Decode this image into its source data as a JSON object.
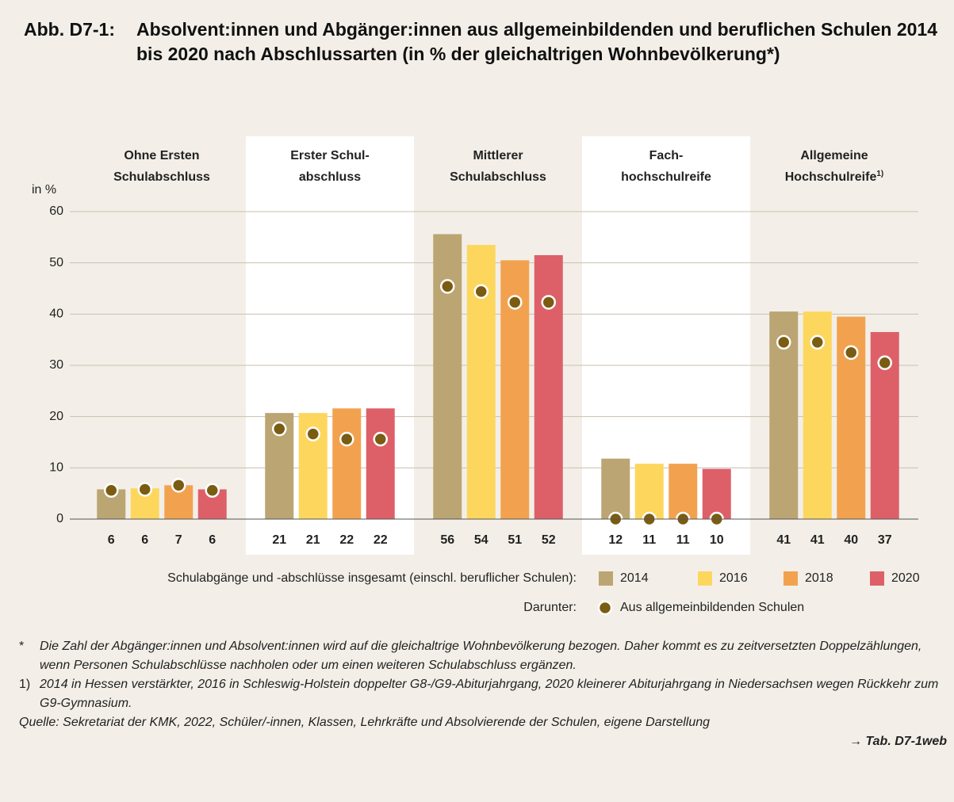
{
  "chart_data": {
    "type": "bar",
    "figure_label": "Abb. D7-1:",
    "title": "Absolvent:innen und Abgänger:innen aus allgemeinbildenden und beruflichen Schulen 2014 bis 2020 nach Abschlussarten (in % der gleichaltrigen Wohnbevölkerung*)",
    "y_label": "in %",
    "categories": [
      {
        "lines": [
          "Ohne Ersten",
          "Schulabschluss"
        ]
      },
      {
        "lines": [
          "Erster Schul-",
          "abschluss"
        ]
      },
      {
        "lines": [
          "Mittlerer",
          "Schulabschluss"
        ]
      },
      {
        "lines": [
          "Fach-",
          "hochschulreife"
        ]
      },
      {
        "lines": [
          "Allgemeine",
          "Hochschulreife"
        ],
        "note": "1)"
      }
    ],
    "series": [
      {
        "name": "2014",
        "color": "#bba573",
        "values": [
          5.8,
          20.7,
          55.6,
          11.8,
          40.5
        ],
        "value_labels": [
          "6",
          "21",
          "56",
          "12",
          "41"
        ],
        "dots": [
          5.6,
          17.6,
          45.4,
          0,
          34.5
        ]
      },
      {
        "name": "2016",
        "color": "#fdd75d",
        "values": [
          6,
          20.7,
          53.5,
          10.8,
          40.5
        ],
        "value_labels": [
          "6",
          "21",
          "54",
          "11",
          "41"
        ],
        "dots": [
          5.8,
          16.6,
          44.4,
          0,
          34.5
        ]
      },
      {
        "name": "2018",
        "color": "#f2a24f",
        "values": [
          6.6,
          21.6,
          50.5,
          10.8,
          39.5
        ],
        "value_labels": [
          "7",
          "22",
          "51",
          "11",
          "40"
        ],
        "dots": [
          6.6,
          15.6,
          42.3,
          0,
          32.5
        ]
      },
      {
        "name": "2020",
        "color": "#dd6069",
        "values": [
          5.8,
          21.6,
          51.5,
          9.8,
          36.5
        ],
        "value_labels": [
          "6",
          "22",
          "52",
          "10",
          "37"
        ],
        "dots": [
          5.6,
          15.6,
          42.3,
          0,
          30.5
        ]
      }
    ],
    "legend_label": "Schulabgänge und -abschlüsse insgesamt (einschl. beruflicher Schulen):",
    "dot_legend_prefix": "Darunter:",
    "dot_legend_name": "Aus allgemeinbildenden Schulen",
    "dot_color": "#7a5c12",
    "ylim": [
      0,
      60
    ],
    "yticks": [
      0,
      10,
      20,
      30,
      40,
      50,
      60
    ],
    "grid": true,
    "notes": [
      {
        "marker": "*",
        "text": "Die Zahl der Abgänger:innen und Absolvent:innen wird auf die gleichaltrige Wohnbevölkerung bezogen. Daher kommt es zu zeitversetzten Doppelzählungen, wenn Personen Schulabschlüsse nachholen oder um einen weiteren Schulabschluss ergänzen."
      },
      {
        "marker": "1)",
        "text": "2014 in Hessen verstärkter, 2016 in Schleswig-Holstein doppelter G8-/G9-Abiturjahrgang, 2020 kleinerer Abiturjahrgang in Niedersachsen wegen Rückkehr zum G9-Gymnasium."
      }
    ],
    "source": "Quelle: Sekretariat der KMK, 2022, Schüler/-innen, Klassen, Lehrkräfte und Absolvierende der Schulen, eigene Darstellung",
    "reference": "→ Tab. D7-1web"
  }
}
